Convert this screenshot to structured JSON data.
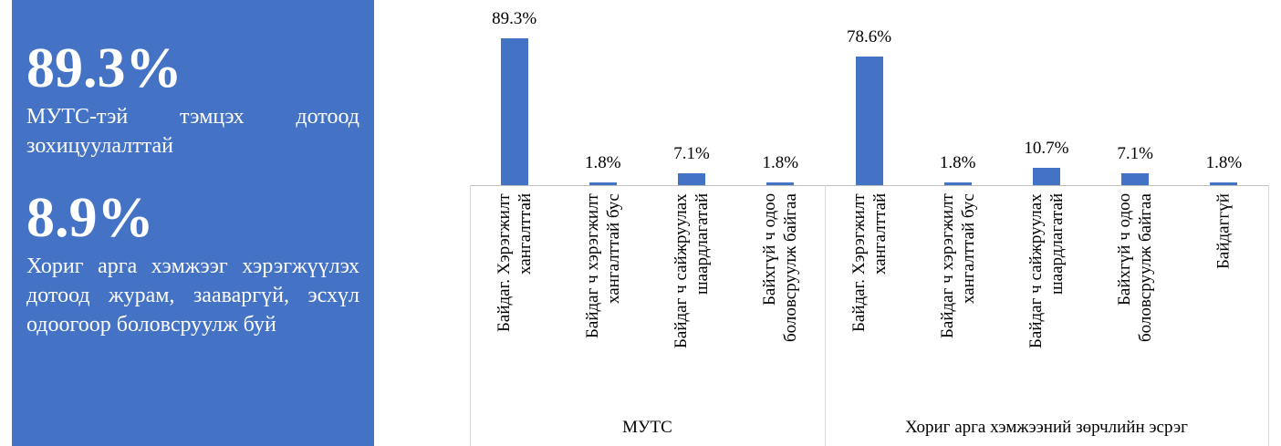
{
  "panel": {
    "items": [
      {
        "figure": "89.3%",
        "text": "МУТС-тэй тэмцэх дотоод зохицуулалттай"
      },
      {
        "figure": "8.9%",
        "text": "Хориг арга хэмжээг хэрэгжүүлэх дотоод журам, зааваргүй, эсхүл одоогоор боловсруулж буй"
      }
    ]
  },
  "chart_data": {
    "type": "bar",
    "color": "#4472c4",
    "groups": [
      {
        "name": "МУТС",
        "size": 4
      },
      {
        "name": "Хориг арга хэмжээний зөрчлийн эсрэг",
        "size": 5
      }
    ],
    "categories": [
      "Байдаг. Хэрэгжилт хангалттай",
      "Байдаг ч хэрэгжилт хангалттай бус",
      "Байдаг ч сайжруулах шаардлагатай",
      "Байхгүй ч одоо боловсруулж байгаа",
      "Байдаг. Хэрэгжилт хангалттай",
      "Байдаг ч хэрэгжилт хангалттай бус",
      "Байдаг ч сайжруулах шаардлагатай",
      "Байхгүй ч одоо боловсруулж байгаа",
      "Байдаггүй"
    ],
    "values": [
      89.3,
      1.8,
      7.1,
      1.8,
      78.6,
      1.8,
      10.7,
      7.1,
      1.8
    ],
    "value_labels": [
      "89.3%",
      "1.8%",
      "7.1%",
      "1.8%",
      "78.6%",
      "1.8%",
      "10.7%",
      "7.1%",
      "1.8%"
    ]
  }
}
